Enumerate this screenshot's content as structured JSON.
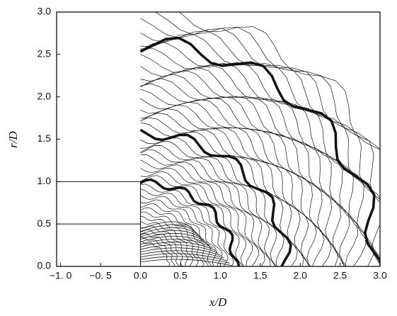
{
  "chart_data": {
    "type": "contour",
    "x_label": "x/D",
    "y_label": "r/D",
    "xlim": [
      -1.05,
      3.0
    ],
    "ylim": [
      0,
      3.0
    ],
    "xticks": [
      {
        "value": -1.0,
        "label": "−1. 0"
      },
      {
        "value": -0.5,
        "label": "−0. 5"
      },
      {
        "value": 0,
        "label": "0.0"
      },
      0.5,
      {
        "value": 1,
        "label": "1.0"
      },
      1.5,
      {
        "value": 2,
        "label": "2.0"
      },
      2.5,
      {
        "value": 3,
        "label": "3.0"
      }
    ],
    "yticks": [
      {
        "value": 0,
        "label": "0.0"
      },
      0.5,
      {
        "value": 1,
        "label": "1.0"
      },
      1.5,
      {
        "value": 2,
        "label": "2.0"
      },
      2.5,
      {
        "value": 3,
        "label": "3.0"
      }
    ],
    "color": "#111111"
  }
}
